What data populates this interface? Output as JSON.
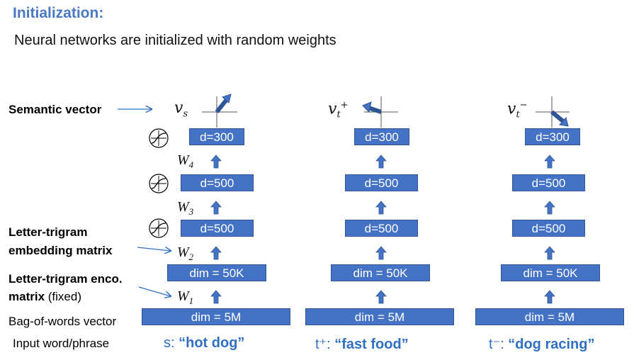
{
  "title": "Initialization:",
  "subtitle": "Neural networks are initialized with random weights",
  "labels": {
    "semantic_vector": "Semantic vector",
    "letter_trigram_embedding_1": "Letter-trigram",
    "letter_trigram_embedding_2": "embedding matrix",
    "letter_trigram_enco_1": "Letter-trigram enco.",
    "letter_trigram_enco_2_bold": "matrix",
    "letter_trigram_enco_2_rest": " (fixed)",
    "bag_of_words": "Bag-of-words vector",
    "input_word": "Input word/phrase"
  },
  "weights": {
    "w1": "W",
    "w1_sub": "1",
    "w2": "W",
    "w2_sub": "2",
    "w3": "W",
    "w3_sub": "3",
    "w4": "W",
    "w4_sub": "4"
  },
  "columns": [
    {
      "vector_label": "v",
      "vector_sub": "s",
      "vector_sup": "",
      "layers": [
        "dim = 5M",
        "dim = 50K",
        "d=500",
        "d=500",
        "d=300"
      ],
      "input_prefix": "s: ",
      "input_quote": "“hot dog”"
    },
    {
      "vector_label": "v",
      "vector_sub": "t",
      "vector_sup": "+",
      "layers": [
        "dim = 5M",
        "dim = 50K",
        "d=500",
        "d=500",
        "d=300"
      ],
      "input_prefix": "t⁺: ",
      "input_quote": "“fast food”"
    },
    {
      "vector_label": "v",
      "vector_sub": "t",
      "vector_sup": "−",
      "layers": [
        "dim = 5M",
        "dim = 50K",
        "d=500",
        "d=500",
        "d=300"
      ],
      "input_prefix": "t⁻: ",
      "input_quote": "“dog racing”"
    }
  ],
  "colors": {
    "box": "#4472c4",
    "accent": "#2f6fc4",
    "title": "#4a78c4"
  }
}
